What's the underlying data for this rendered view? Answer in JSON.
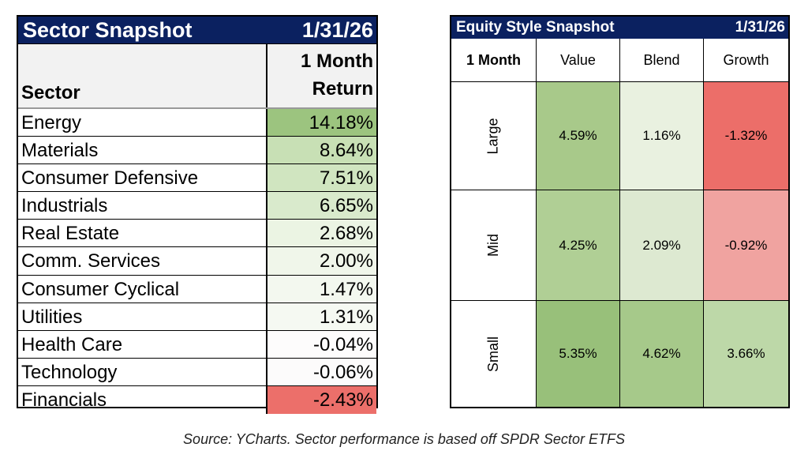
{
  "sector_table": {
    "title": "Sector Snapshot",
    "date": "1/31/26",
    "col_sector": "Sector",
    "col_return_line1": "1 Month",
    "col_return_line2": "Return",
    "rows": [
      {
        "sector": "Energy",
        "return": "14.18%",
        "color": "#9cc47f"
      },
      {
        "sector": "Materials",
        "return": "8.64%",
        "color": "#c8e0b5"
      },
      {
        "sector": "Consumer Defensive",
        "return": "7.51%",
        "color": "#d0e5c0"
      },
      {
        "sector": "Industrials",
        "return": "6.65%",
        "color": "#d9eacc"
      },
      {
        "sector": "Real Estate",
        "return": "2.68%",
        "color": "#ebf4e3"
      },
      {
        "sector": "Comm. Services",
        "return": "2.00%",
        "color": "#f0f6ea"
      },
      {
        "sector": "Consumer Cyclical",
        "return": "1.47%",
        "color": "#f3f8ef"
      },
      {
        "sector": "Utilities",
        "return": "1.31%",
        "color": "#f5f9f2"
      },
      {
        "sector": "Health Care",
        "return": "-0.04%",
        "color": "#fdfcfc"
      },
      {
        "sector": "Technology",
        "return": "-0.06%",
        "color": "#fcfbfb"
      },
      {
        "sector": "Financials",
        "return": "-2.43%",
        "color": "#ec6f6a"
      }
    ]
  },
  "style_table": {
    "title": "Equity Style Snapshot",
    "date": "1/31/26",
    "corner": "1 Month",
    "columns": [
      "Value",
      "Blend",
      "Growth"
    ],
    "rows": [
      {
        "size": "Large",
        "values": [
          "4.59%",
          "1.16%",
          "-1.32%"
        ],
        "colors": [
          "#a8c98a",
          "#e9f1e0",
          "#ec6e69"
        ]
      },
      {
        "size": "Mid",
        "values": [
          "4.25%",
          "2.09%",
          "-0.92%"
        ],
        "colors": [
          "#b0cf95",
          "#dde9d1",
          "#f0a3a0"
        ]
      },
      {
        "size": "Small",
        "values": [
          "5.35%",
          "4.62%",
          "3.66%"
        ],
        "colors": [
          "#98c07a",
          "#a6c98a",
          "#bdd8a8"
        ]
      }
    ]
  },
  "caption": "Source: YCharts. Sector performance is based off SPDR Sector ETFS"
}
